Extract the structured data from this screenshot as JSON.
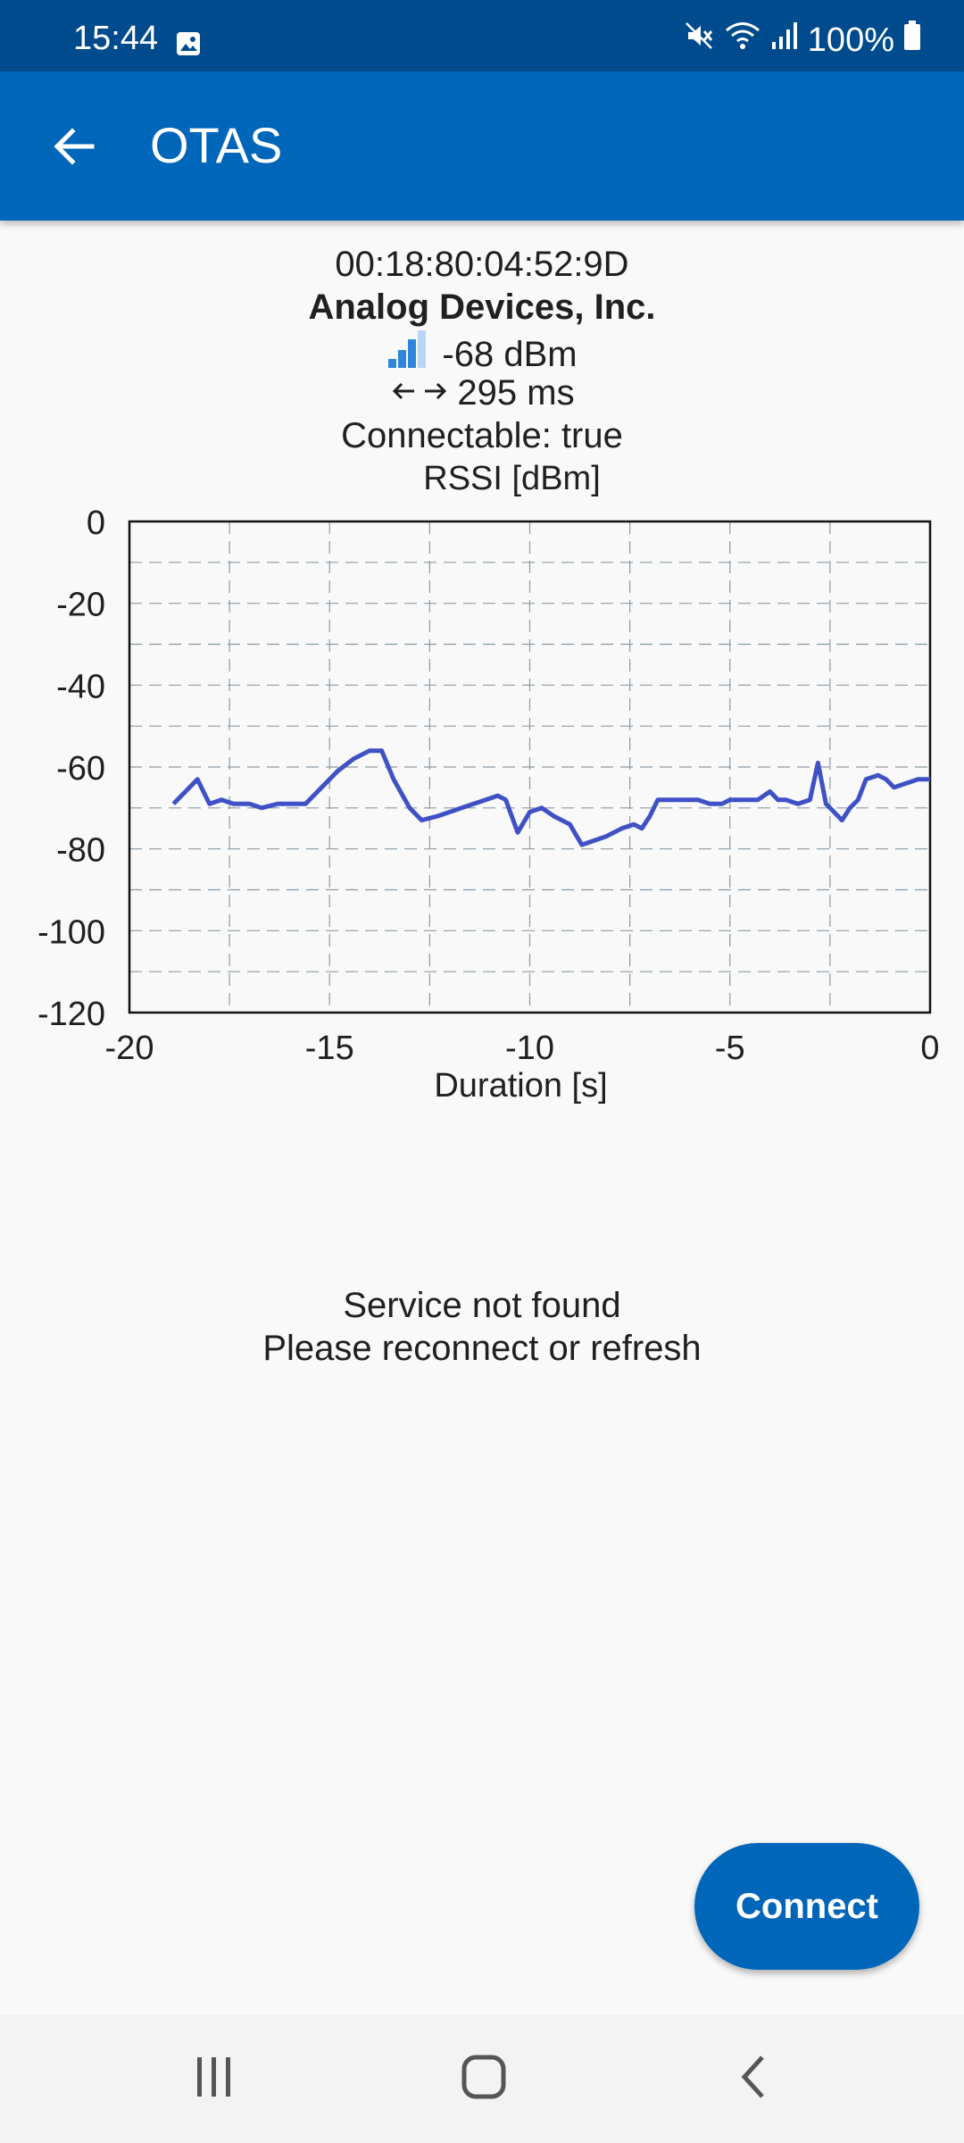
{
  "status_bar": {
    "time": "15:44",
    "battery": "100%",
    "icons": [
      "image-icon",
      "mute-icon",
      "wifi-icon",
      "signal-icon",
      "battery-icon"
    ]
  },
  "app_bar": {
    "title": "OTAS",
    "back_icon": "arrow-back-icon"
  },
  "device": {
    "address": "00:18:80:04:52:9D",
    "vendor": "Analog Devices, Inc.",
    "rssi": "-68 dBm",
    "interval": "295 ms",
    "connectable": "Connectable: true"
  },
  "chart_data": {
    "type": "line",
    "title": "RSSI [dBm]",
    "xlabel": "Duration [s]",
    "ylabel": "",
    "xlim": [
      -20,
      0
    ],
    "ylim": [
      -120,
      0
    ],
    "x_ticks": [
      "-20",
      "-15",
      "-10",
      "-5",
      "0"
    ],
    "y_ticks": [
      "0",
      "-20",
      "-40",
      "-60",
      "-80",
      "-100",
      "-120"
    ],
    "grid": true,
    "line_color": "#3f51c5",
    "series": [
      {
        "x": [
          -18.9,
          -18.6,
          -18.3,
          -18.0,
          -17.7,
          -17.4,
          -17.0,
          -16.7,
          -16.3,
          -16.0,
          -15.6,
          -15.2,
          -14.8,
          -14.4,
          -14.0,
          -13.7,
          -13.4,
          -13.0,
          -12.7,
          -12.3,
          -12.0,
          -11.7,
          -11.4,
          -11.1,
          -10.8,
          -10.6,
          -10.3,
          -10.0,
          -9.7,
          -9.4,
          -9.0,
          -8.7,
          -8.4,
          -8.1,
          -7.7,
          -7.4,
          -7.2,
          -7.0,
          -6.8,
          -6.5,
          -6.2,
          -5.8,
          -5.5,
          -5.2,
          -5.0,
          -4.8,
          -4.6,
          -4.3,
          -4.0,
          -3.8,
          -3.6,
          -3.3,
          -3.0,
          -2.8,
          -2.6,
          -2.4,
          -2.2,
          -2.0,
          -1.8,
          -1.6,
          -1.3,
          -1.1,
          -0.9,
          -0.6,
          -0.3,
          0.0
        ],
        "values": [
          -69,
          -66,
          -63,
          -69,
          -68,
          -69,
          -69,
          -70,
          -69,
          -69,
          -69,
          -65,
          -61,
          -58,
          -56,
          -56,
          -63,
          -70,
          -73,
          -72,
          -71,
          -70,
          -69,
          -68,
          -67,
          -68,
          -76,
          -71,
          -70,
          -72,
          -74,
          -79,
          -78,
          -77,
          -75,
          -74,
          -75,
          -72,
          -68,
          -68,
          -68,
          -68,
          -69,
          -69,
          -68,
          -68,
          -68,
          -68,
          -66,
          -68,
          -68,
          -69,
          -68,
          -59,
          -69,
          -71,
          -73,
          -70,
          -68,
          -63,
          -62,
          -63,
          -65,
          -64,
          -63,
          -63
        ]
      }
    ]
  },
  "service_message": {
    "line1": "Service not found",
    "line2": "Please reconnect or refresh"
  },
  "connect_label": "Connect",
  "nav": {
    "recents_icon": "recents-icon",
    "home_icon": "home-icon",
    "back_icon": "nav-back-icon"
  }
}
